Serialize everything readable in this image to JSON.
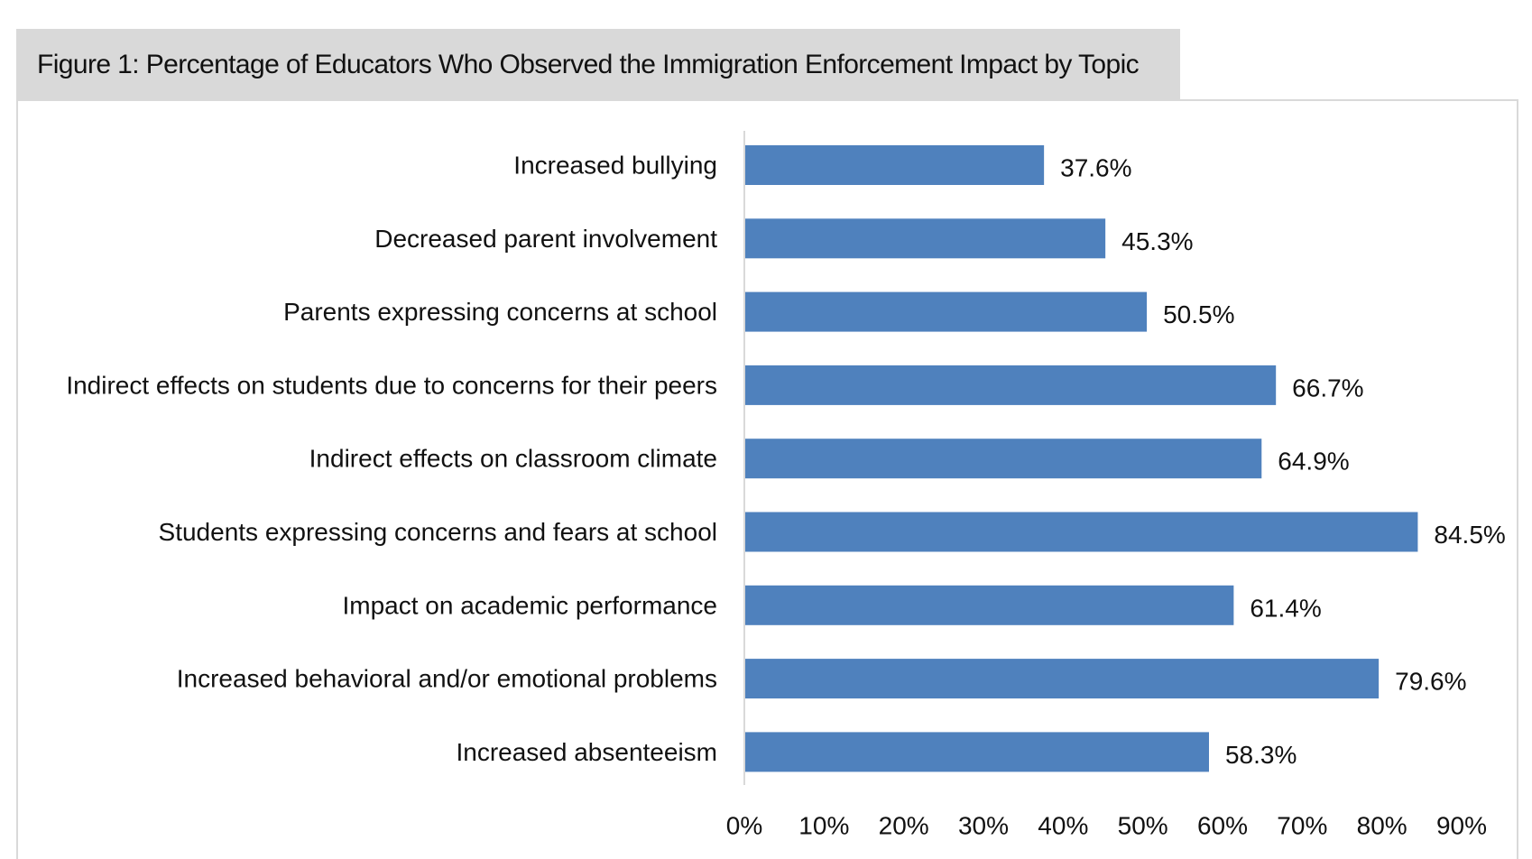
{
  "figure": {
    "title": "Figure 1: Percentage of Educators Who Observed the Immigration Enforcement Impact by Topic"
  },
  "chart_data": {
    "type": "bar",
    "orientation": "horizontal",
    "title": "Figure 1: Percentage of Educators Who Observed the Immigration Enforcement Impact by Topic",
    "xlabel": "",
    "ylabel": "",
    "categories": [
      "Increased bullying",
      "Decreased parent involvement",
      "Parents expressing concerns at school",
      "Indirect effects on students due to concerns for their peers",
      "Indirect effects on classroom climate",
      "Students expressing concerns and fears at school",
      "Impact on academic performance",
      "Increased behavioral and/or emotional problems",
      "Increased absenteeism"
    ],
    "values": [
      37.6,
      45.3,
      50.5,
      66.7,
      64.9,
      84.5,
      61.4,
      79.6,
      58.3
    ],
    "value_labels": [
      "37.6%",
      "45.3%",
      "50.5%",
      "66.7%",
      "64.9%",
      "84.5%",
      "61.4%",
      "79.6%",
      "58.3%"
    ],
    "xlim": [
      0,
      90
    ],
    "xticks": [
      0,
      10,
      20,
      30,
      40,
      50,
      60,
      70,
      80,
      90
    ],
    "xtick_labels": [
      "0%",
      "10%",
      "20%",
      "30%",
      "40%",
      "50%",
      "60%",
      "70%",
      "80%",
      "90%"
    ],
    "grid": false,
    "legend": "none",
    "bar_color": "#4f81bd",
    "axis_color": "#d9d9d9"
  }
}
